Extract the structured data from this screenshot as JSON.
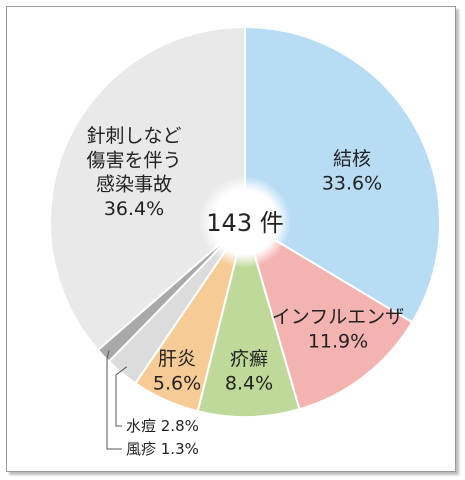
{
  "chart_data": {
    "type": "pie",
    "center_label": "143 件",
    "slices": [
      {
        "name": "結核",
        "value": 33.6,
        "display": "33.6%",
        "color": "#b7dcf4"
      },
      {
        "name": "インフルエンザ",
        "value": 11.9,
        "display": "11.9%",
        "color": "#f3b3b1"
      },
      {
        "name": "疥癬",
        "value": 8.4,
        "display": "8.4%",
        "color": "#bfd99a"
      },
      {
        "name": "肝炎",
        "value": 5.6,
        "display": "5.6%",
        "color": "#f7cb96"
      },
      {
        "name": "水痘",
        "value": 2.8,
        "display": "2.8%",
        "color": "#dcdcdc"
      },
      {
        "name": "風疹",
        "value": 1.3,
        "display": "1.3%",
        "color": "#a9a9a9"
      },
      {
        "name": "針刺しなど傷害を伴う感染事故",
        "name_lines": [
          "針刺しなど",
          "傷害を伴う",
          "感染事故"
        ],
        "value": 36.4,
        "display": "36.4%",
        "color": "#e9e9e9"
      }
    ]
  }
}
